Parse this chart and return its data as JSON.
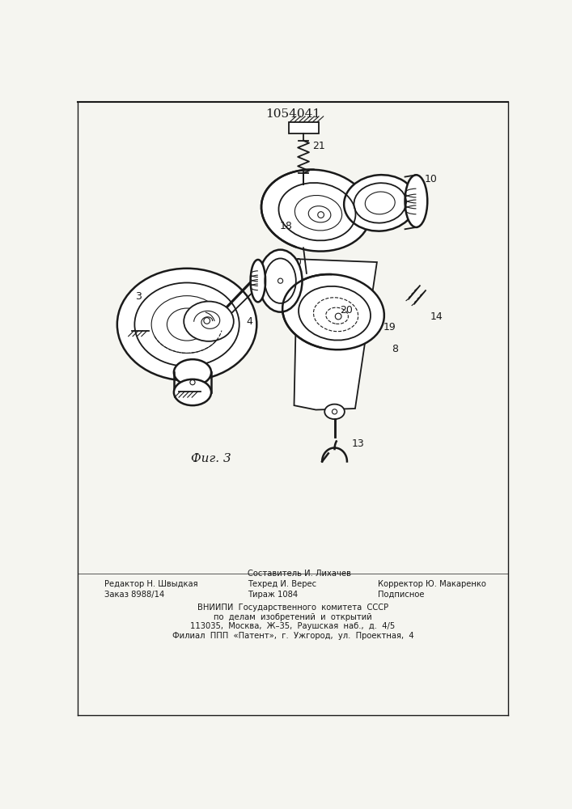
{
  "title": "1054041",
  "fig_label": "Фиг. 3",
  "background_color": "#f5f5f0",
  "line_color": "#1a1a1a",
  "bottom_text": {
    "col1": [
      "Редактор Н. Швыдкая",
      "Заказ 8988/14"
    ],
    "col2": [
      "Составитель И. Лихачев",
      "Техред И. Верес",
      "Тираж 1084"
    ],
    "col3": [
      "Корректор Ю. Макаренко",
      "Подписное"
    ],
    "institution": [
      "ВНИИПИ  Государственного  комитета  СССР",
      "по  делам  изобретений  и  открытий",
      "113035,  Москва,  Ж–35,  Раушская  наб.,  д.  4/5",
      "Филиал  ППП  «Патент»,  г.  Ужгород,  ул.  Проектная,  4"
    ]
  }
}
